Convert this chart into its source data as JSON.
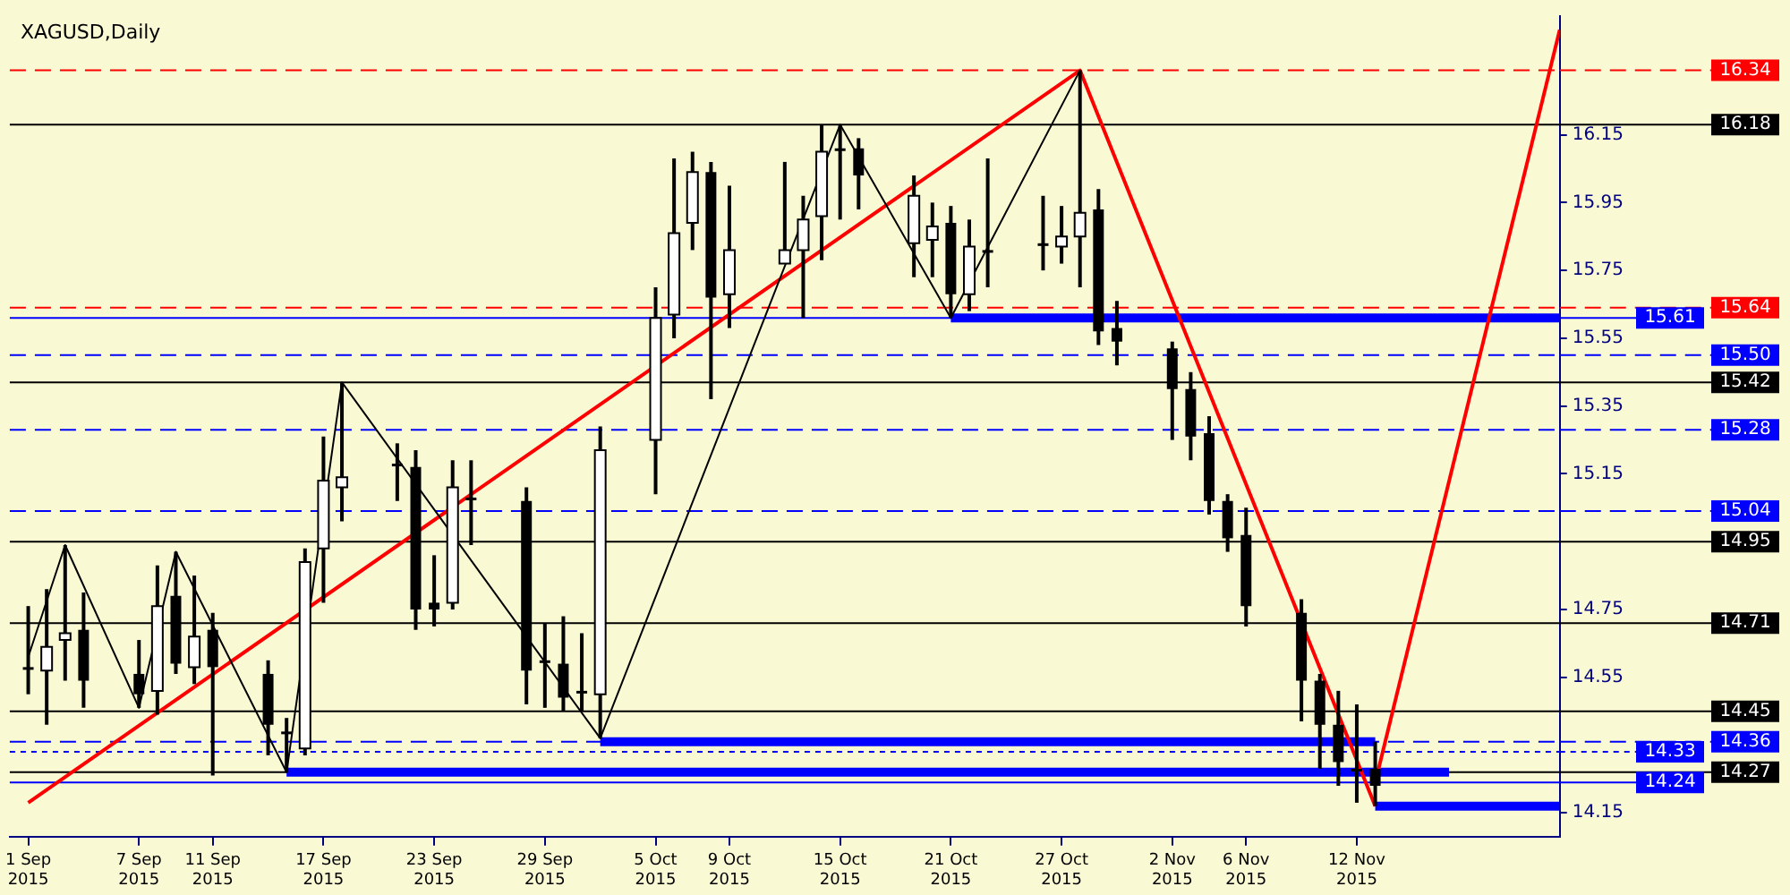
{
  "chart_data": {
    "type": "candlestick",
    "title": "XAGUSD,Daily",
    "x": [
      "2015-09-01",
      "2015-09-02",
      "2015-09-03",
      "2015-09-04",
      "2015-09-07",
      "2015-09-08",
      "2015-09-09",
      "2015-09-10",
      "2015-09-11",
      "2015-09-14",
      "2015-09-15",
      "2015-09-16",
      "2015-09-17",
      "2015-09-18",
      "2015-09-21",
      "2015-09-22",
      "2015-09-23",
      "2015-09-24",
      "2015-09-25",
      "2015-09-28",
      "2015-09-29",
      "2015-09-30",
      "2015-10-01",
      "2015-10-02",
      "2015-10-05",
      "2015-10-06",
      "2015-10-07",
      "2015-10-08",
      "2015-10-09",
      "2015-10-12",
      "2015-10-13",
      "2015-10-14",
      "2015-10-15",
      "2015-10-16",
      "2015-10-19",
      "2015-10-20",
      "2015-10-21",
      "2015-10-22",
      "2015-10-23",
      "2015-10-26",
      "2015-10-27",
      "2015-10-28",
      "2015-10-29",
      "2015-10-30",
      "2015-11-02",
      "2015-11-03",
      "2015-11-04",
      "2015-11-05",
      "2015-11-06",
      "2015-11-09",
      "2015-11-10",
      "2015-11-11",
      "2015-11-12",
      "2015-11-13"
    ],
    "ohlc": [
      [
        14.58,
        14.76,
        14.5,
        14.58
      ],
      [
        14.57,
        14.81,
        14.41,
        14.64
      ],
      [
        14.66,
        14.94,
        14.54,
        14.68
      ],
      [
        14.69,
        14.8,
        14.46,
        14.54
      ],
      [
        14.56,
        14.66,
        14.46,
        14.5
      ],
      [
        14.51,
        14.88,
        14.44,
        14.76
      ],
      [
        14.79,
        14.92,
        14.56,
        14.59
      ],
      [
        14.58,
        14.85,
        14.53,
        14.67
      ],
      [
        14.69,
        14.74,
        14.26,
        14.58
      ],
      [
        14.56,
        14.6,
        14.32,
        14.41
      ],
      [
        14.39,
        14.43,
        14.27,
        14.39
      ],
      [
        14.34,
        14.93,
        14.32,
        14.89
      ],
      [
        14.93,
        15.26,
        14.77,
        15.13
      ],
      [
        15.11,
        15.42,
        15.01,
        15.14
      ],
      [
        15.18,
        15.24,
        15.07,
        15.18
      ],
      [
        15.17,
        15.22,
        14.69,
        14.75
      ],
      [
        14.77,
        14.91,
        14.7,
        14.75
      ],
      [
        14.77,
        15.19,
        14.75,
        15.11
      ],
      [
        15.08,
        15.19,
        14.94,
        15.08
      ],
      [
        15.07,
        15.11,
        14.47,
        14.57
      ],
      [
        14.6,
        14.71,
        14.46,
        14.6
      ],
      [
        14.59,
        14.73,
        14.45,
        14.49
      ],
      [
        14.51,
        14.68,
        14.45,
        14.51
      ],
      [
        14.5,
        15.29,
        14.37,
        15.22
      ],
      [
        15.25,
        15.7,
        15.09,
        15.61
      ],
      [
        15.62,
        16.08,
        15.55,
        15.86
      ],
      [
        15.89,
        16.1,
        15.81,
        16.04
      ],
      [
        16.04,
        16.07,
        15.37,
        15.67
      ],
      [
        15.68,
        16.0,
        15.58,
        15.81
      ],
      [
        15.77,
        16.07,
        15.77,
        15.81
      ],
      [
        15.81,
        15.97,
        15.61,
        15.9
      ],
      [
        15.91,
        16.18,
        15.78,
        16.1
      ],
      [
        16.11,
        16.18,
        15.9,
        16.11
      ],
      [
        16.11,
        16.14,
        15.93,
        16.03
      ],
      [
        15.83,
        16.03,
        15.73,
        15.97
      ],
      [
        15.84,
        15.95,
        15.73,
        15.88
      ],
      [
        15.89,
        15.94,
        15.61,
        15.68
      ],
      [
        15.68,
        15.9,
        15.63,
        15.82
      ],
      [
        15.81,
        16.08,
        15.7,
        15.81
      ],
      [
        15.83,
        15.97,
        15.75,
        15.83
      ],
      [
        15.82,
        15.94,
        15.77,
        15.85
      ],
      [
        15.85,
        16.34,
        15.7,
        15.92
      ],
      [
        15.93,
        15.99,
        15.53,
        15.57
      ],
      [
        15.58,
        15.66,
        15.47,
        15.54
      ],
      [
        15.52,
        15.54,
        15.25,
        15.4
      ],
      [
        15.4,
        15.45,
        15.19,
        15.26
      ],
      [
        15.27,
        15.32,
        15.03,
        15.07
      ],
      [
        15.07,
        15.09,
        14.92,
        14.96
      ],
      [
        14.97,
        15.05,
        14.7,
        14.76
      ],
      [
        14.74,
        14.78,
        14.42,
        14.54
      ],
      [
        14.54,
        14.56,
        14.28,
        14.41
      ],
      [
        14.41,
        14.51,
        14.23,
        14.3
      ],
      [
        14.28,
        14.47,
        14.18,
        14.28
      ],
      [
        14.28,
        14.36,
        14.17,
        14.23
      ]
    ],
    "series": [
      {
        "type": "line",
        "color": "#000000",
        "x": [
          "2015-09-01",
          "2015-09-03",
          "2015-09-07",
          "2015-09-09",
          "2015-09-15",
          "2015-09-18",
          "2015-10-02",
          "2015-10-15",
          "2015-10-21",
          "2015-10-28"
        ],
        "values": [
          14.61,
          14.94,
          14.46,
          14.92,
          14.27,
          15.42,
          14.37,
          16.18,
          15.61,
          16.34
        ]
      },
      {
        "type": "line",
        "color": "#ff0000",
        "x": [
          "2015-09-01",
          "2015-10-28",
          "2015-11-13"
        ],
        "values": [
          14.18,
          16.34,
          14.17
        ]
      },
      {
        "type": "line",
        "color": "#ff0000",
        "x": [
          "2015-11-13",
          "2015-11-23"
        ],
        "values": [
          14.24,
          16.46
        ]
      },
      {
        "type": "line",
        "color": "#0000ff",
        "x": [
          "2015-10-21",
          "2015-11-23"
        ],
        "values": [
          15.61,
          15.61
        ]
      },
      {
        "type": "line",
        "color": "#0000ff",
        "x": [
          "2015-10-02",
          "2015-11-13"
        ],
        "values": [
          14.36,
          14.36
        ]
      },
      {
        "type": "line",
        "color": "#0000ff",
        "x": [
          "2015-09-15",
          "2015-11-17"
        ],
        "values": [
          14.27,
          14.27
        ]
      },
      {
        "type": "line",
        "color": "#0000ff",
        "x": [
          "2015-11-13",
          "2015-11-23"
        ],
        "values": [
          14.17,
          14.17
        ]
      }
    ],
    "ref_lines": [
      {
        "axis": "y",
        "value": 16.34,
        "label": "16.34",
        "color": "#ff0000",
        "line_style": "dashed"
      },
      {
        "axis": "y",
        "value": 16.18,
        "label": "16.18",
        "color": "#000000",
        "line_style": "solid"
      },
      {
        "axis": "y",
        "value": 15.64,
        "label": "15.64",
        "color": "#ff0000",
        "line_style": "dashed"
      },
      {
        "axis": "y",
        "value": 15.61,
        "label": "15.61",
        "color": "#0000ff",
        "line_style": "solid"
      },
      {
        "axis": "y",
        "value": 15.5,
        "label": "15.50",
        "color": "#0000ff",
        "line_style": "dashed"
      },
      {
        "axis": "y",
        "value": 15.42,
        "label": "15.42",
        "color": "#000000",
        "line_style": "solid"
      },
      {
        "axis": "y",
        "value": 15.28,
        "label": "15.28",
        "color": "#0000ff",
        "line_style": "dashed"
      },
      {
        "axis": "y",
        "value": 15.04,
        "label": "15.04",
        "color": "#0000ff",
        "line_style": "dashed"
      },
      {
        "axis": "y",
        "value": 14.95,
        "label": "14.95",
        "color": "#000000",
        "line_style": "solid"
      },
      {
        "axis": "y",
        "value": 14.71,
        "label": "14.71",
        "color": "#000000",
        "line_style": "solid"
      },
      {
        "axis": "y",
        "value": 14.45,
        "label": "14.45",
        "color": "#000000",
        "line_style": "solid"
      },
      {
        "axis": "y",
        "value": 14.36,
        "label": "14.36",
        "color": "#0000ff",
        "line_style": "dashed"
      },
      {
        "axis": "y",
        "value": 14.33,
        "label": "14.33",
        "color": "#0000ff",
        "line_style": "dotted"
      },
      {
        "axis": "y",
        "value": 14.27,
        "label": "14.27",
        "color": "#000000",
        "line_style": "solid"
      },
      {
        "axis": "y",
        "value": 14.24,
        "label": "14.24",
        "color": "#0000ff",
        "line_style": "solid"
      }
    ],
    "xlim": [
      "2015-08-31",
      "2015-11-23"
    ],
    "xticks": [
      {
        "value": "2015-09-01",
        "label": "1 Sep 2015"
      },
      {
        "value": "2015-09-07",
        "label": "7 Sep 2015"
      },
      {
        "value": "2015-09-11",
        "label": "11 Sep 2015"
      },
      {
        "value": "2015-09-17",
        "label": "17 Sep 2015"
      },
      {
        "value": "2015-09-23",
        "label": "23 Sep 2015"
      },
      {
        "value": "2015-09-29",
        "label": "29 Sep 2015"
      },
      {
        "value": "2015-10-05",
        "label": "5 Oct 2015"
      },
      {
        "value": "2015-10-09",
        "label": "9 Oct 2015"
      },
      {
        "value": "2015-10-15",
        "label": "15 Oct 2015"
      },
      {
        "value": "2015-10-21",
        "label": "21 Oct 2015"
      },
      {
        "value": "2015-10-27",
        "label": "27 Oct 2015"
      },
      {
        "value": "2015-11-02",
        "label": "2 Nov 2015"
      },
      {
        "value": "2015-11-06",
        "label": "6 Nov 2015"
      },
      {
        "value": "2015-11-12",
        "label": "12 Nov 2015"
      }
    ],
    "ylim": [
      14.08,
      16.5
    ],
    "yticks": [
      14.15,
      14.55,
      14.75,
      15.15,
      15.35,
      15.55,
      15.75,
      15.95,
      16.15
    ],
    "grid": false,
    "legend": false
  }
}
